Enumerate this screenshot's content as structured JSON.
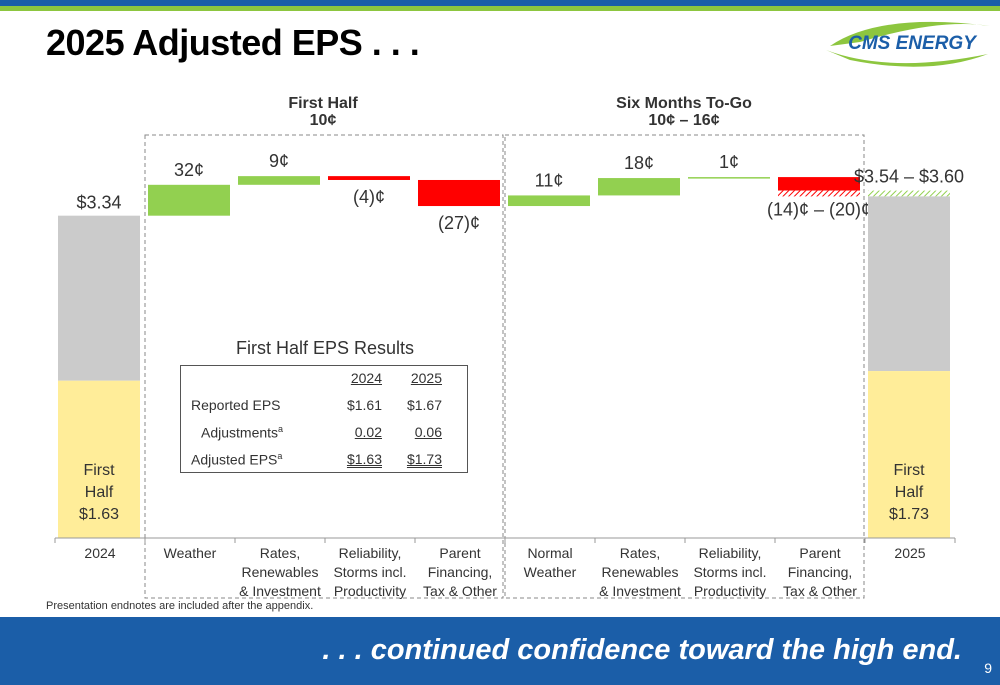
{
  "title": "2025 Adjusted EPS . . .",
  "logo_text": "CMS ENERGY",
  "footnote": "Presentation endnotes are included after the appendix.",
  "tagline": ". . . continued confidence toward the high end.",
  "page_number": "9",
  "colors": {
    "increase": "#92d050",
    "decrease": "#ff0000",
    "full_year_bar": "#cbcbcb",
    "first_half_bar": "#ffed99",
    "brand_blue": "#1b5ea8",
    "brand_green": "#8dc63f"
  },
  "groups": [
    {
      "title": "First Half",
      "subtitle": "10¢"
    },
    {
      "title": "Six Months To-Go",
      "subtitle": "10¢ – 16¢"
    }
  ],
  "chart_data": {
    "type": "waterfall",
    "units": "¢ per share",
    "categories": [
      "2024",
      "Weather",
      "Rates, Renewables & Investment",
      "Reliability, Storms incl. Productivity",
      "Parent Financing, Tax & Other",
      "Normal Weather",
      "Rates, Renewables & Investment",
      "Reliability, Storms incl. Productivity",
      "Parent Financing, Tax & Other",
      "2025"
    ],
    "category_lines": [
      [
        "2024"
      ],
      [
        "Weather"
      ],
      [
        "Rates,",
        "Renewables",
        "& Investment"
      ],
      [
        "Reliability,",
        "Storms incl.",
        "Productivity"
      ],
      [
        "Parent",
        "Financing,",
        "Tax & Other"
      ],
      [
        "Normal",
        "Weather"
      ],
      [
        "Rates,",
        "Renewables",
        "& Investment"
      ],
      [
        "Reliability,",
        "Storms incl.",
        "Productivity"
      ],
      [
        "Parent",
        "Financing,",
        "Tax & Other"
      ],
      [
        "2025"
      ]
    ],
    "bars": [
      {
        "kind": "total",
        "value": 3.34,
        "first_half": 1.63,
        "label": "$3.34",
        "first_half_lines": [
          "First",
          "Half",
          "$1.63"
        ]
      },
      {
        "kind": "delta",
        "value": 0.32,
        "label": "32¢"
      },
      {
        "kind": "delta",
        "value": 0.09,
        "label": "9¢"
      },
      {
        "kind": "delta",
        "value": -0.04,
        "label": "(4)¢"
      },
      {
        "kind": "delta",
        "value": -0.27,
        "label": "(27)¢"
      },
      {
        "kind": "delta",
        "value": 0.11,
        "label": "11¢"
      },
      {
        "kind": "delta",
        "value": 0.18,
        "label": "18¢"
      },
      {
        "kind": "delta",
        "value": 0.01,
        "label": "1¢"
      },
      {
        "kind": "delta_range",
        "value_low": -0.2,
        "value_high": -0.14,
        "label": "(14)¢ – (20)¢"
      },
      {
        "kind": "total_range",
        "value_low": 3.54,
        "value_high": 3.6,
        "first_half": 1.73,
        "label": "$3.54 – $3.60",
        "first_half_lines": [
          "First",
          "Half",
          "$1.73"
        ]
      }
    ]
  },
  "results_table": {
    "title": "First Half EPS Results",
    "col1": "2024",
    "col2": "2025",
    "rows": [
      {
        "label": "Reported EPS",
        "sup": "",
        "v1": "$1.61",
        "v2": "$1.67"
      },
      {
        "label": "Adjustments",
        "sup": "a",
        "v1": "0.02",
        "v2": "0.06"
      },
      {
        "label": "Adjusted EPS",
        "sup": "a",
        "v1": "$1.63",
        "v2": "$1.73"
      }
    ]
  }
}
